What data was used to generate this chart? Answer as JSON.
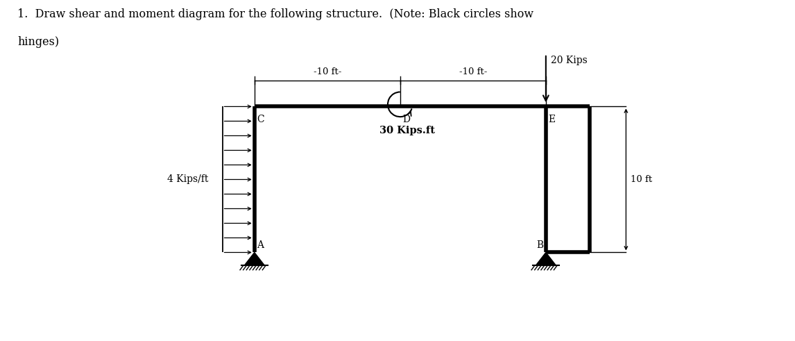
{
  "title_line1": "1.  Draw shear and moment diagram for the following structure.  (Note: Black circles show",
  "title_line2": "hinges)",
  "title_fontsize": 11.5,
  "bg_color": "#ffffff",
  "text_color": "#000000",
  "label_C": "C",
  "label_D": "D",
  "label_E": "E",
  "label_A": "A",
  "label_B": "B",
  "dist_label_10ft_1": "-10 ft-",
  "dist_label_10ft_2": "-10 ft-",
  "dist_label_10ft_3": "10 ft",
  "load_label": "4 Kips/ft",
  "moment_label": "30 Kips.ft",
  "force_label": "20 Kips",
  "member_linewidth": 4.0,
  "dim_linewidth": 1.0,
  "arrow_linewidth": 1.2
}
